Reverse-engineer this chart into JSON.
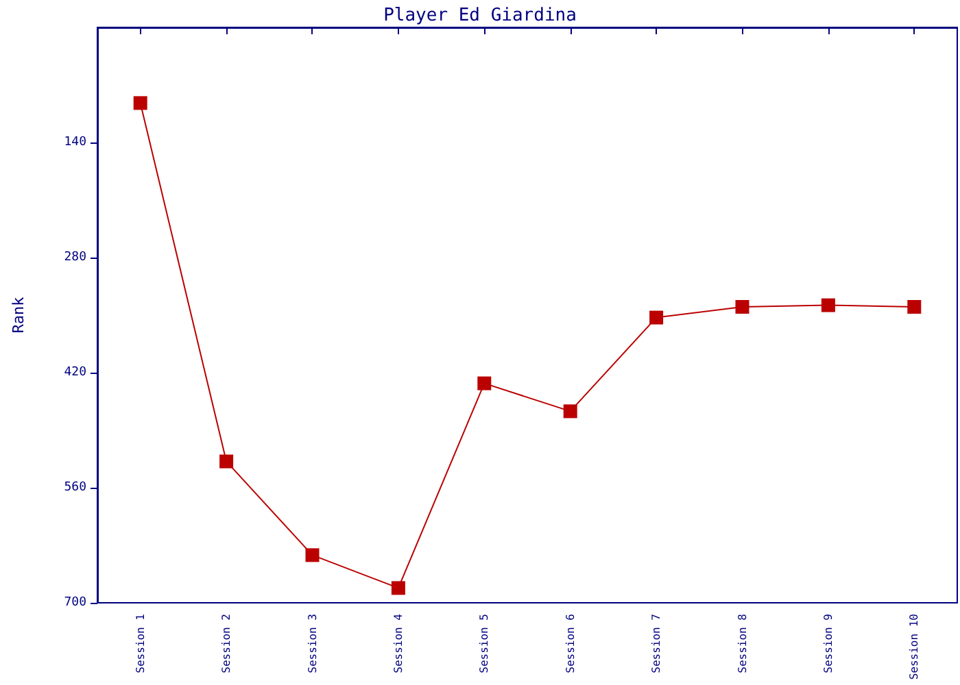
{
  "chart_data": {
    "type": "line",
    "title": "Player Ed Giardina",
    "ylabel": "Rank",
    "categories": [
      "Session 1",
      "Session 2",
      "Session 3",
      "Session 4",
      "Session 5",
      "Session 6",
      "Session 7",
      "Session 8",
      "Session 9",
      "Session 10"
    ],
    "series": [
      {
        "color": "#bb0000",
        "values": [
          92,
          528,
          642,
          682,
          433,
          467,
          353,
          340,
          338,
          340
        ]
      }
    ],
    "ylim": [
      700,
      0
    ],
    "yticks": [
      140,
      280,
      420,
      560,
      700
    ],
    "grid": false,
    "marker": "square",
    "line_style": "solid"
  }
}
